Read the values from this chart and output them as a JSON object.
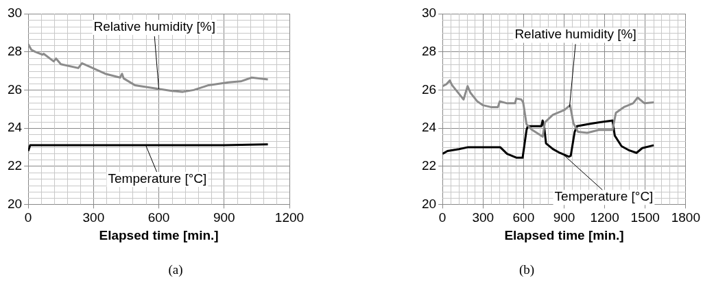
{
  "chart_data": [
    {
      "type": "line",
      "xlabel": "Elapsed time [min.]",
      "xlim": [
        0,
        1200
      ],
      "xticks": [
        0,
        300,
        600,
        900,
        1200
      ],
      "ylim": [
        20,
        30
      ],
      "yticks": [
        20,
        22,
        24,
        26,
        28,
        30
      ],
      "grid": true,
      "legend": false,
      "marker": "none",
      "line_style": "solid",
      "series": [
        {
          "color": "#8c8c8c",
          "x": [
            0,
            15,
            32,
            66,
            71,
            117,
            128,
            150,
            230,
            247,
            286,
            354,
            422,
            431,
            439,
            490,
            603,
            660,
            710,
            761,
            829,
            920,
            976,
            1027,
            1067,
            1101
          ],
          "values": [
            28.4,
            28.1,
            28.0,
            27.85,
            27.9,
            27.5,
            27.65,
            27.35,
            27.15,
            27.4,
            27.2,
            26.85,
            26.65,
            26.85,
            26.6,
            26.25,
            26.05,
            25.95,
            25.9,
            26.0,
            26.25,
            26.4,
            26.45,
            26.65,
            26.6,
            26.55
          ]
        },
        {
          "color": "#000000",
          "x": [
            0,
            9,
            100,
            300,
            500,
            700,
            900,
            1101
          ],
          "values": [
            22.8,
            23.1,
            23.1,
            23.1,
            23.1,
            23.1,
            23.1,
            23.15
          ]
        }
      ],
      "annotations": [
        {
          "text": "Relative humidity [%]",
          "x": 600,
          "y": 26.05
        },
        {
          "text": "Temperature [°C]",
          "x": 540,
          "y": 23.1
        },
        "(a)"
      ]
    },
    {
      "type": "line",
      "xlabel": "Elapsed time [min.]",
      "xlim": [
        0,
        1800
      ],
      "xticks": [
        0,
        300,
        600,
        900,
        1200,
        1500,
        1800
      ],
      "ylim": [
        20,
        30
      ],
      "yticks": [
        20,
        22,
        24,
        26,
        28,
        30
      ],
      "grid": true,
      "legend": false,
      "marker": "none",
      "line_style": "solid",
      "series": [
        {
          "color": "#8c8c8c",
          "x": [
            3,
            29,
            54,
            71,
            122,
            156,
            186,
            207,
            258,
            300,
            359,
            410,
            424,
            478,
            537,
            546,
            583,
            597,
            622,
            664,
            698,
            741,
            758,
            817,
            902,
            944,
            969,
            1003,
            1071,
            1156,
            1258,
            1283,
            1342,
            1410,
            1444,
            1495,
            1563
          ],
          "values": [
            26.2,
            26.3,
            26.5,
            26.25,
            25.8,
            25.5,
            26.2,
            25.85,
            25.4,
            25.2,
            25.1,
            25.1,
            25.4,
            25.3,
            25.3,
            25.55,
            25.5,
            25.35,
            24.2,
            23.9,
            23.75,
            23.55,
            24.3,
            24.7,
            24.95,
            25.2,
            24.25,
            23.8,
            23.75,
            23.9,
            23.9,
            24.8,
            25.1,
            25.3,
            25.6,
            25.3,
            25.35
          ]
        },
        {
          "color": "#000000",
          "x": [
            0,
            37,
            122,
            190,
            427,
            478,
            546,
            593,
            622,
            631,
            732,
            741,
            753,
            766,
            817,
            868,
            936,
            949,
            978,
            995,
            1071,
            1156,
            1258,
            1275,
            1325,
            1376,
            1436,
            1478,
            1563
          ],
          "values": [
            22.65,
            22.8,
            22.9,
            23.0,
            23.0,
            22.65,
            22.45,
            22.45,
            23.9,
            24.1,
            24.1,
            24.4,
            24.05,
            23.2,
            22.9,
            22.7,
            22.5,
            22.55,
            23.8,
            24.1,
            24.2,
            24.3,
            24.4,
            23.6,
            23.05,
            22.85,
            22.7,
            22.95,
            23.1
          ]
        }
      ],
      "annotations": [
        {
          "text": "Relative humidity [%]",
          "x": 940,
          "y": 25.1
        },
        {
          "text": "Temperature [°C]",
          "x": 880,
          "y": 22.7
        },
        "(b)"
      ]
    }
  ]
}
